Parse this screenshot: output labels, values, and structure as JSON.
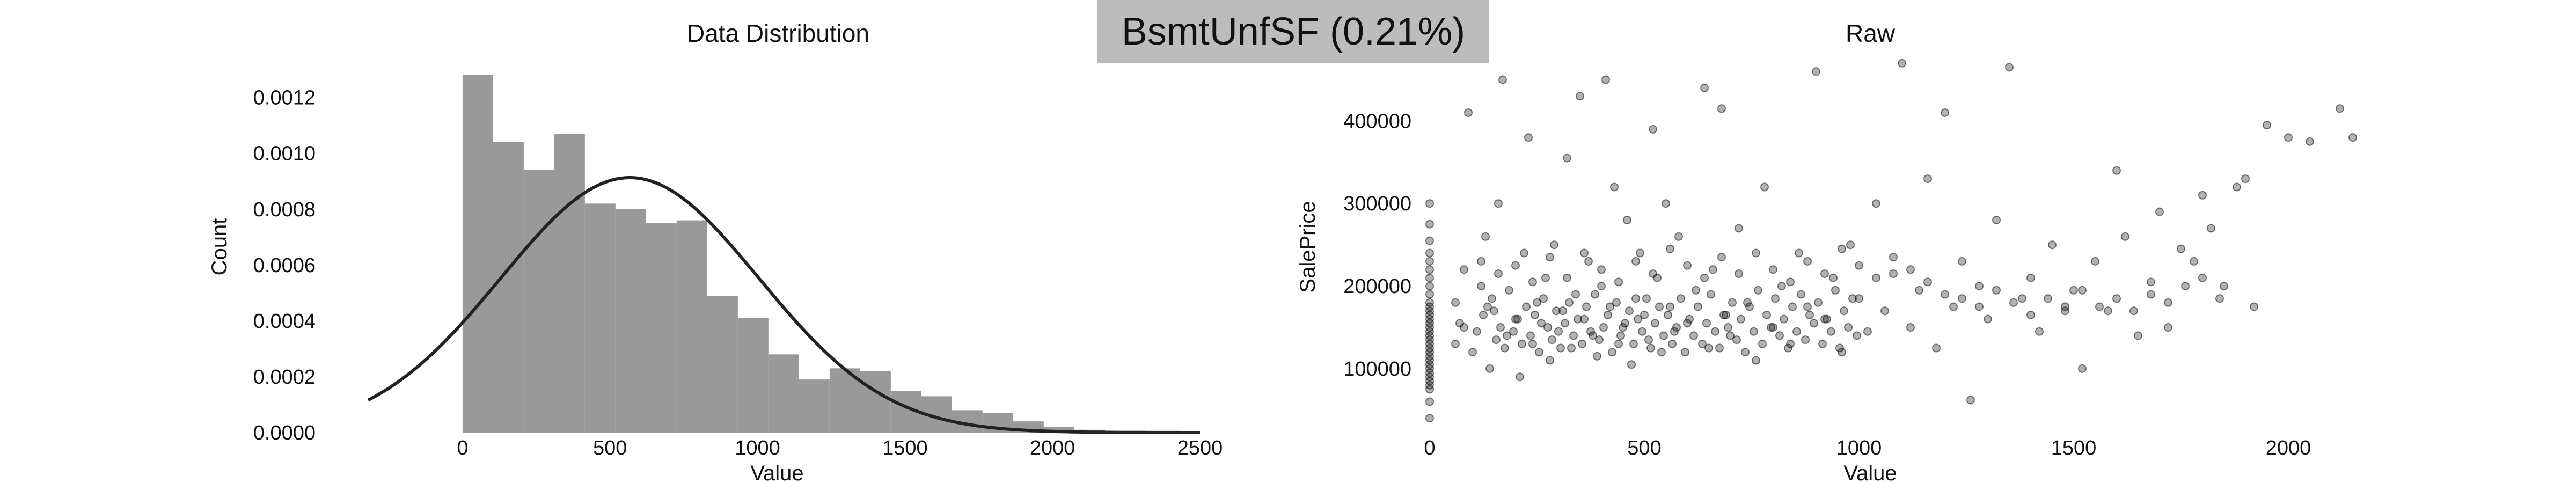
{
  "header": {
    "text": "BsmtUnfSF (0.21%)"
  },
  "colors": {
    "bars": "#999999",
    "curve": "#222222",
    "points": "#000000",
    "header_bg": "#bcbcbc"
  },
  "chart_data": [
    {
      "type": "bar",
      "title": "Data Distribution",
      "xlabel": "Value",
      "ylabel": "Count",
      "xlim": [
        -320,
        2500
      ],
      "ylim": [
        0,
        0.00128
      ],
      "xticks": [
        "0",
        "500",
        "1000",
        "1500",
        "2000",
        "2500"
      ],
      "yticks": [
        "0.0000",
        "0.0002",
        "0.0004",
        "0.0006",
        "0.0008",
        "0.0010",
        "0.0012"
      ],
      "bin_edges": [
        0,
        103.7,
        207.4,
        311.1,
        414.8,
        518.5,
        622.2,
        725.9,
        829.6,
        933.3,
        1037,
        1140.7,
        1244.4,
        1348.1,
        1451.8,
        1555.5,
        1659.2,
        1762.9,
        1866.6,
        1970.3,
        2074,
        2177.7,
        2281.4,
        2385.1
      ],
      "density": [
        0.00128,
        0.00104,
        0.00094,
        0.00107,
        0.00082,
        0.0008,
        0.00075,
        0.00076,
        0.00049,
        0.00041,
        0.00028,
        0.00019,
        0.00023,
        0.00022,
        0.00015,
        0.00013,
        8e-05,
        7e-05,
        4e-05,
        2e-05,
        1e-05,
        5e-06,
        5e-06
      ],
      "fit_curve": {
        "type": "normal",
        "mean": 567,
        "std": 437,
        "x_range": [
          -320,
          2500
        ]
      }
    },
    {
      "type": "scatter",
      "title": "Raw",
      "xlabel": "Value",
      "ylabel": "SalePrice",
      "xlim": [
        -30,
        2220
      ],
      "ylim": [
        20000,
        475000
      ],
      "xticks": [
        "0",
        "500",
        "1000",
        "1500",
        "2000"
      ],
      "yticks": [
        "100000",
        "200000",
        "300000",
        "400000"
      ],
      "points_summary": "~1460 points; x = BsmtUnfSF (0-2150), y = SalePrice (35000-470000); dense vertical strip at x=0, main cloud x 0-1000, y 100000-250000",
      "points": [
        [
          0,
          85000
        ],
        [
          0,
          90000
        ],
        [
          0,
          95000
        ],
        [
          0,
          100000
        ],
        [
          0,
          105000
        ],
        [
          0,
          110000
        ],
        [
          0,
          115000
        ],
        [
          0,
          120000
        ],
        [
          0,
          125000
        ],
        [
          0,
          130000
        ],
        [
          0,
          135000
        ],
        [
          0,
          140000
        ],
        [
          0,
          145000
        ],
        [
          0,
          150000
        ],
        [
          0,
          155000
        ],
        [
          0,
          160000
        ],
        [
          0,
          165000
        ],
        [
          0,
          170000
        ],
        [
          0,
          175000
        ],
        [
          0,
          180000
        ],
        [
          0,
          190000
        ],
        [
          0,
          200000
        ],
        [
          0,
          210000
        ],
        [
          0,
          220000
        ],
        [
          0,
          230000
        ],
        [
          0,
          240000
        ],
        [
          0,
          255000
        ],
        [
          0,
          275000
        ],
        [
          0,
          300000
        ],
        [
          0,
          80000
        ],
        [
          0,
          75000
        ],
        [
          0,
          60000
        ],
        [
          0,
          40000
        ],
        [
          60,
          180000
        ],
        [
          80,
          150000
        ],
        [
          90,
          410000
        ],
        [
          100,
          120000
        ],
        [
          120,
          200000
        ],
        [
          130,
          260000
        ],
        [
          140,
          100000
        ],
        [
          150,
          170000
        ],
        [
          160,
          300000
        ],
        [
          170,
          450000
        ],
        [
          180,
          140000
        ],
        [
          200,
          160000
        ],
        [
          210,
          90000
        ],
        [
          220,
          240000
        ],
        [
          230,
          380000
        ],
        [
          240,
          130000
        ],
        [
          250,
          180000
        ],
        [
          260,
          155000
        ],
        [
          270,
          210000
        ],
        [
          280,
          110000
        ],
        [
          290,
          250000
        ],
        [
          300,
          145000
        ],
        [
          310,
          170000
        ],
        [
          320,
          355000
        ],
        [
          330,
          125000
        ],
        [
          340,
          190000
        ],
        [
          350,
          430000
        ],
        [
          360,
          160000
        ],
        [
          370,
          230000
        ],
        [
          380,
          140000
        ],
        [
          390,
          115000
        ],
        [
          400,
          200000
        ],
        [
          410,
          450000
        ],
        [
          420,
          175000
        ],
        [
          430,
          320000
        ],
        [
          440,
          130000
        ],
        [
          450,
          150000
        ],
        [
          460,
          280000
        ],
        [
          470,
          105000
        ],
        [
          480,
          185000
        ],
        [
          490,
          240000
        ],
        [
          500,
          165000
        ],
        [
          510,
          135000
        ],
        [
          520,
          390000
        ],
        [
          530,
          210000
        ],
        [
          540,
          120000
        ],
        [
          550,
          300000
        ],
        [
          560,
          175000
        ],
        [
          570,
          145000
        ],
        [
          580,
          260000
        ],
        [
          600,
          155000
        ],
        [
          620,
          195000
        ],
        [
          640,
          440000
        ],
        [
          650,
          125000
        ],
        [
          660,
          220000
        ],
        [
          680,
          415000
        ],
        [
          690,
          165000
        ],
        [
          700,
          140000
        ],
        [
          720,
          270000
        ],
        [
          740,
          180000
        ],
        [
          760,
          110000
        ],
        [
          780,
          320000
        ],
        [
          800,
          150000
        ],
        [
          820,
          200000
        ],
        [
          840,
          130000
        ],
        [
          860,
          240000
        ],
        [
          880,
          175000
        ],
        [
          900,
          460000
        ],
        [
          920,
          160000
        ],
        [
          940,
          210000
        ],
        [
          960,
          120000
        ],
        [
          980,
          250000
        ],
        [
          1000,
          185000
        ],
        [
          1020,
          145000
        ],
        [
          1040,
          300000
        ],
        [
          1060,
          170000
        ],
        [
          1080,
          215000
        ],
        [
          1100,
          470000
        ],
        [
          1120,
          150000
        ],
        [
          1140,
          195000
        ],
        [
          1160,
          330000
        ],
        [
          1180,
          125000
        ],
        [
          1200,
          410000
        ],
        [
          1220,
          175000
        ],
        [
          1240,
          230000
        ],
        [
          1260,
          62000
        ],
        [
          1280,
          200000
        ],
        [
          1300,
          160000
        ],
        [
          1320,
          280000
        ],
        [
          1350,
          465000
        ],
        [
          1380,
          185000
        ],
        [
          1400,
          210000
        ],
        [
          1420,
          145000
        ],
        [
          1450,
          250000
        ],
        [
          1480,
          175000
        ],
        [
          1500,
          195000
        ],
        [
          1520,
          100000
        ],
        [
          1550,
          230000
        ],
        [
          1580,
          170000
        ],
        [
          1600,
          340000
        ],
        [
          1620,
          260000
        ],
        [
          1650,
          140000
        ],
        [
          1680,
          205000
        ],
        [
          1700,
          290000
        ],
        [
          1720,
          150000
        ],
        [
          1750,
          245000
        ],
        [
          1780,
          230000
        ],
        [
          1800,
          310000
        ],
        [
          1820,
          270000
        ],
        [
          1850,
          200000
        ],
        [
          1880,
          320000
        ],
        [
          1900,
          330000
        ],
        [
          1920,
          175000
        ],
        [
          1950,
          395000
        ],
        [
          2000,
          380000
        ],
        [
          2050,
          375000
        ],
        [
          2120,
          415000
        ],
        [
          2150,
          380000
        ],
        [
          60,
          130000
        ],
        [
          70,
          155000
        ],
        [
          110,
          145000
        ],
        [
          125,
          165000
        ],
        [
          135,
          175000
        ],
        [
          145,
          185000
        ],
        [
          155,
          135000
        ],
        [
          165,
          150000
        ],
        [
          175,
          125000
        ],
        [
          185,
          195000
        ],
        [
          195,
          145000
        ],
        [
          205,
          160000
        ],
        [
          215,
          130000
        ],
        [
          225,
          175000
        ],
        [
          235,
          140000
        ],
        [
          245,
          165000
        ],
        [
          255,
          120000
        ],
        [
          265,
          185000
        ],
        [
          275,
          150000
        ],
        [
          285,
          135000
        ],
        [
          295,
          170000
        ],
        [
          305,
          125000
        ],
        [
          315,
          155000
        ],
        [
          325,
          180000
        ],
        [
          335,
          140000
        ],
        [
          345,
          160000
        ],
        [
          355,
          130000
        ],
        [
          365,
          175000
        ],
        [
          375,
          145000
        ],
        [
          385,
          190000
        ],
        [
          395,
          135000
        ],
        [
          405,
          150000
        ],
        [
          415,
          165000
        ],
        [
          425,
          120000
        ],
        [
          435,
          180000
        ],
        [
          445,
          140000
        ],
        [
          455,
          155000
        ],
        [
          465,
          170000
        ],
        [
          475,
          130000
        ],
        [
          485,
          160000
        ],
        [
          495,
          145000
        ],
        [
          505,
          185000
        ],
        [
          515,
          125000
        ],
        [
          525,
          155000
        ],
        [
          535,
          175000
        ],
        [
          545,
          140000
        ],
        [
          555,
          165000
        ],
        [
          565,
          130000
        ],
        [
          575,
          150000
        ],
        [
          585,
          185000
        ],
        [
          595,
          120000
        ],
        [
          605,
          160000
        ],
        [
          615,
          140000
        ],
        [
          625,
          175000
        ],
        [
          635,
          130000
        ],
        [
          645,
          155000
        ],
        [
          655,
          190000
        ],
        [
          665,
          145000
        ],
        [
          675,
          125000
        ],
        [
          685,
          165000
        ],
        [
          695,
          150000
        ],
        [
          705,
          180000
        ],
        [
          715,
          135000
        ],
        [
          725,
          160000
        ],
        [
          735,
          120000
        ],
        [
          745,
          175000
        ],
        [
          755,
          145000
        ],
        [
          765,
          195000
        ],
        [
          775,
          130000
        ],
        [
          785,
          165000
        ],
        [
          795,
          150000
        ],
        [
          805,
          185000
        ],
        [
          815,
          140000
        ],
        [
          825,
          160000
        ],
        [
          835,
          125000
        ],
        [
          845,
          175000
        ],
        [
          855,
          145000
        ],
        [
          865,
          190000
        ],
        [
          875,
          135000
        ],
        [
          885,
          165000
        ],
        [
          895,
          155000
        ],
        [
          905,
          180000
        ],
        [
          915,
          130000
        ],
        [
          925,
          160000
        ],
        [
          935,
          145000
        ],
        [
          945,
          195000
        ],
        [
          955,
          125000
        ],
        [
          965,
          170000
        ],
        [
          975,
          150000
        ],
        [
          985,
          185000
        ],
        [
          995,
          140000
        ],
        [
          80,
          220000
        ],
        [
          120,
          230000
        ],
        [
          160,
          215000
        ],
        [
          200,
          225000
        ],
        [
          240,
          205000
        ],
        [
          280,
          235000
        ],
        [
          320,
          210000
        ],
        [
          360,
          240000
        ],
        [
          400,
          220000
        ],
        [
          440,
          205000
        ],
        [
          480,
          230000
        ],
        [
          520,
          215000
        ],
        [
          560,
          245000
        ],
        [
          600,
          225000
        ],
        [
          640,
          210000
        ],
        [
          680,
          235000
        ],
        [
          720,
          215000
        ],
        [
          760,
          240000
        ],
        [
          800,
          220000
        ],
        [
          840,
          205000
        ],
        [
          880,
          230000
        ],
        [
          920,
          215000
        ],
        [
          960,
          245000
        ],
        [
          1000,
          225000
        ],
        [
          1040,
          210000
        ],
        [
          1080,
          235000
        ],
        [
          1120,
          220000
        ],
        [
          1160,
          205000
        ],
        [
          1200,
          190000
        ],
        [
          1240,
          185000
        ],
        [
          1280,
          175000
        ],
        [
          1320,
          195000
        ],
        [
          1360,
          180000
        ],
        [
          1400,
          165000
        ],
        [
          1440,
          185000
        ],
        [
          1480,
          170000
        ],
        [
          1520,
          195000
        ],
        [
          1560,
          175000
        ],
        [
          1600,
          185000
        ],
        [
          1640,
          170000
        ],
        [
          1680,
          190000
        ],
        [
          1720,
          180000
        ],
        [
          1760,
          200000
        ],
        [
          1800,
          210000
        ],
        [
          1840,
          185000
        ]
      ]
    }
  ]
}
